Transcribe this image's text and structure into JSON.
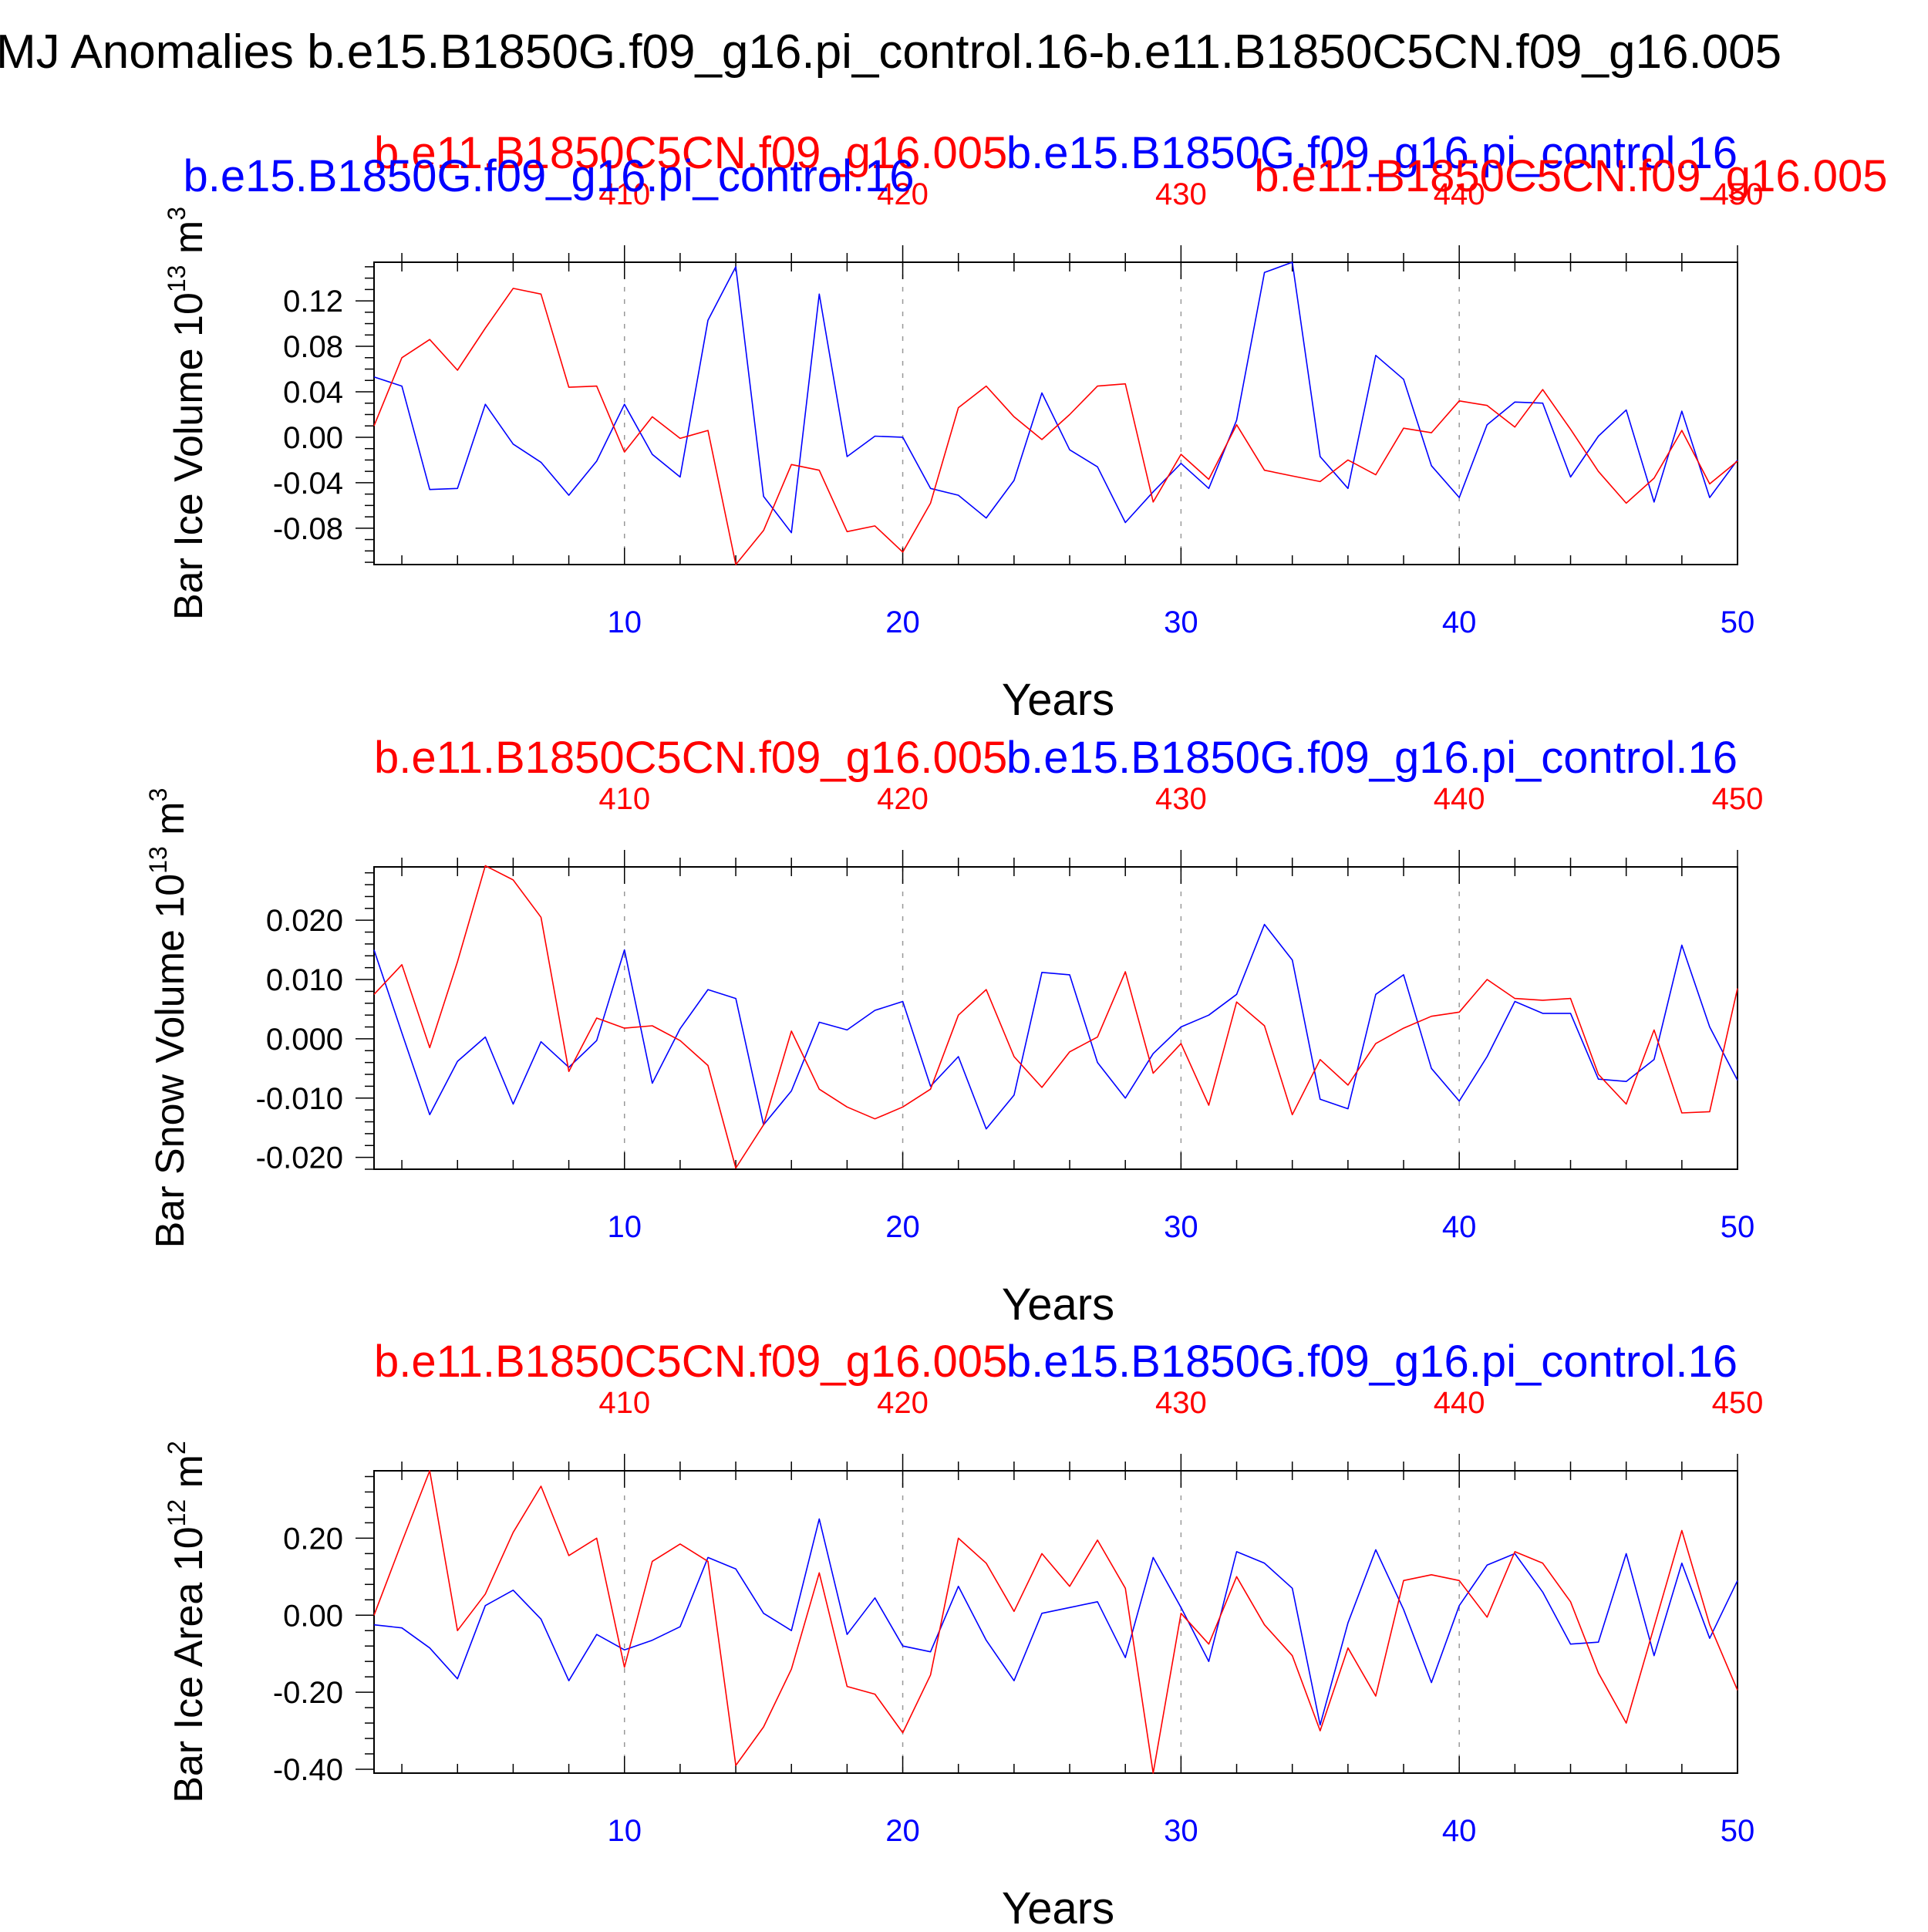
{
  "title": "MJ Anomalies b.e15.B1850G.f09_g16.pi_control.16-b.e11.B1850C5CN.f09_g16.005",
  "colors": {
    "case": "#0000ff",
    "control": "#ff0000",
    "axis": "#000000",
    "grid": "#999999"
  },
  "chart_data": [
    {
      "type": "line",
      "ylabel_main": "Bar Ice Volume 10",
      "ylabel_exp": "13",
      "ylabel_unit": " m",
      "ylabel_unit_exp": "3",
      "xlabel": "Years",
      "ylim": [
        -0.112,
        0.154
      ],
      "yticks": [
        -0.08,
        -0.04,
        0.0,
        0.04,
        0.08,
        0.12
      ],
      "ytick_labels": [
        "-0.08",
        "-0.04",
        "0.00",
        "0.04",
        "0.08",
        "0.12"
      ],
      "yminor_step": 0.01,
      "xlim": [
        1,
        50
      ],
      "xticks": [
        10,
        20,
        30,
        40,
        50
      ],
      "xtick_labels": [
        "10",
        "20",
        "30",
        "40",
        "50"
      ],
      "top_xtick_labels": [
        "410",
        "420",
        "430",
        "440",
        "450"
      ],
      "series_labels": [
        {
          "name": "b.e11.B1850C5CN.f09_g16.005",
          "color": "control",
          "anchor": "start",
          "xfrac": 0.0,
          "dy": -150
        },
        {
          "name": "b.e15.B1850G.f09_g16.pi_control.16",
          "color": "case",
          "anchor": "end",
          "xfrac": 1.0,
          "dy": -150
        },
        {
          "name": "b.e15.B1850G.f09_g16.pi_control.16",
          "color": "case",
          "anchor": "start",
          "xfrac": -0.14,
          "dy": -120
        },
        {
          "name": "b.e11.B1850C5CN.f09_g16.005",
          "color": "control",
          "anchor": "end",
          "xfrac": 1.11,
          "dy": -120
        }
      ],
      "x": [
        1,
        2,
        3,
        4,
        5,
        6,
        7,
        8,
        9,
        10,
        11,
        12,
        13,
        14,
        15,
        16,
        17,
        18,
        19,
        20,
        21,
        22,
        23,
        24,
        25,
        26,
        27,
        28,
        29,
        30,
        31,
        32,
        33,
        34,
        35,
        36,
        37,
        38,
        39,
        40,
        41,
        42,
        43,
        44,
        45,
        46,
        47,
        48,
        49,
        50
      ],
      "series": [
        {
          "color": "case",
          "values": [
            0.053,
            0.045,
            -0.046,
            -0.045,
            0.029,
            -0.006,
            -0.022,
            -0.051,
            -0.021,
            0.029,
            -0.015,
            -0.035,
            0.103,
            0.15,
            -0.052,
            -0.084,
            0.126,
            -0.017,
            0.001,
            0.0,
            -0.045,
            -0.051,
            -0.071,
            -0.038,
            0.039,
            -0.011,
            -0.026,
            -0.075,
            -0.048,
            -0.023,
            -0.045,
            0.015,
            0.145,
            0.154,
            -0.017,
            -0.045,
            0.072,
            0.051,
            -0.025,
            -0.053,
            0.011,
            0.031,
            0.03,
            -0.035,
            0.001,
            0.024,
            -0.057,
            0.023,
            -0.053,
            -0.02
          ]
        },
        {
          "color": "control",
          "values": [
            0.01,
            0.07,
            0.086,
            0.059,
            0.096,
            0.131,
            0.126,
            0.044,
            0.045,
            -0.013,
            0.018,
            -0.001,
            0.006,
            -0.112,
            -0.082,
            -0.024,
            -0.029,
            -0.083,
            -0.078,
            -0.101,
            -0.058,
            0.026,
            0.045,
            0.018,
            -0.002,
            0.02,
            0.045,
            0.047,
            -0.057,
            -0.015,
            -0.037,
            0.011,
            -0.029,
            -0.034,
            -0.039,
            -0.02,
            -0.033,
            0.008,
            0.004,
            0.032,
            0.028,
            0.009,
            0.042,
            0.007,
            -0.03,
            -0.058,
            -0.036,
            0.006,
            -0.041,
            -0.021
          ]
        }
      ]
    },
    {
      "type": "line",
      "ylabel_main": "Bar Snow Volume 10",
      "ylabel_exp": "13",
      "ylabel_unit": " m",
      "ylabel_unit_exp": "3",
      "xlabel": "Years",
      "ylim": [
        -0.022,
        0.029
      ],
      "yticks": [
        -0.02,
        -0.01,
        0.0,
        0.01,
        0.02
      ],
      "ytick_labels": [
        "-0.020",
        "-0.010",
        "0.000",
        "0.010",
        "0.020"
      ],
      "yminor_step": 0.002,
      "xlim": [
        1,
        50
      ],
      "xticks": [
        10,
        20,
        30,
        40,
        50
      ],
      "xtick_labels": [
        "10",
        "20",
        "30",
        "40",
        "50"
      ],
      "top_xtick_labels": [
        "410",
        "420",
        "430",
        "440",
        "450"
      ],
      "series_labels": [
        {
          "name": "b.e11.B1850C5CN.f09_g16.005",
          "color": "control",
          "anchor": "start",
          "xfrac": 0.0,
          "dy": -150
        },
        {
          "name": "b.e15.B1850G.f09_g16.pi_control.16",
          "color": "case",
          "anchor": "end",
          "xfrac": 1.0,
          "dy": -150
        }
      ],
      "x": [
        1,
        2,
        3,
        4,
        5,
        6,
        7,
        8,
        9,
        10,
        11,
        12,
        13,
        14,
        15,
        16,
        17,
        18,
        19,
        20,
        21,
        22,
        23,
        24,
        25,
        26,
        27,
        28,
        29,
        30,
        31,
        32,
        33,
        34,
        35,
        36,
        37,
        38,
        39,
        40,
        41,
        42,
        43,
        44,
        45,
        46,
        47,
        48,
        49,
        50
      ],
      "series": [
        {
          "color": "case",
          "values": [
            0.015,
            0.001,
            -0.0128,
            -0.0038,
            0.0003,
            -0.011,
            -0.0005,
            -0.0048,
            -0.0003,
            0.015,
            -0.0075,
            0.0017,
            0.0083,
            0.0068,
            -0.0145,
            -0.0088,
            0.0028,
            0.0015,
            0.0048,
            0.0063,
            -0.008,
            -0.003,
            -0.0152,
            -0.0095,
            0.0112,
            0.0108,
            -0.004,
            -0.01,
            -0.0025,
            0.002,
            0.004,
            0.0075,
            0.0193,
            0.0133,
            -0.0102,
            -0.0118,
            0.0075,
            0.0108,
            -0.005,
            -0.0105,
            -0.003,
            0.0063,
            0.0043,
            0.0043,
            -0.0068,
            -0.0072,
            -0.0035,
            0.0158,
            0.002,
            -0.007
          ]
        },
        {
          "color": "control",
          "values": [
            0.0075,
            0.0125,
            -0.0015,
            0.013,
            0.0292,
            0.0268,
            0.0205,
            -0.0055,
            0.0035,
            0.0018,
            0.0022,
            -0.0003,
            -0.0045,
            -0.0218,
            -0.0145,
            0.0013,
            -0.0085,
            -0.0115,
            -0.0135,
            -0.0115,
            -0.0085,
            0.004,
            0.0083,
            -0.003,
            -0.0082,
            -0.0022,
            0.0003,
            0.0113,
            -0.0058,
            -0.0008,
            -0.0112,
            0.0062,
            0.0022,
            -0.0128,
            -0.0035,
            -0.0078,
            -0.0008,
            0.0018,
            0.0038,
            0.0045,
            0.01,
            0.0068,
            0.0065,
            0.0068,
            -0.006,
            -0.011,
            0.0015,
            -0.0125,
            -0.0123,
            0.0085
          ]
        }
      ]
    },
    {
      "type": "line",
      "ylabel_main": "Bar Ice Area 10",
      "ylabel_exp": "12",
      "ylabel_unit": " m",
      "ylabel_unit_exp": "2",
      "xlabel": "Years",
      "ylim": [
        -0.41,
        0.375
      ],
      "yticks": [
        -0.4,
        -0.2,
        0.0,
        0.2
      ],
      "ytick_labels": [
        "-0.40",
        "-0.20",
        "0.00",
        "0.20"
      ],
      "yminor_step": 0.04,
      "xlim": [
        1,
        50
      ],
      "xticks": [
        10,
        20,
        30,
        40,
        50
      ],
      "xtick_labels": [
        "10",
        "20",
        "30",
        "40",
        "50"
      ],
      "top_xtick_labels": [
        "410",
        "420",
        "430",
        "440",
        "450"
      ],
      "series_labels": [
        {
          "name": "b.e11.B1850C5CN.f09_g16.005",
          "color": "control",
          "anchor": "start",
          "xfrac": 0.0,
          "dy": -150
        },
        {
          "name": "b.e15.B1850G.f09_g16.pi_control.16",
          "color": "case",
          "anchor": "end",
          "xfrac": 1.0,
          "dy": -150
        }
      ],
      "x": [
        1,
        2,
        3,
        4,
        5,
        6,
        7,
        8,
        9,
        10,
        11,
        12,
        13,
        14,
        15,
        16,
        17,
        18,
        19,
        20,
        21,
        22,
        23,
        24,
        25,
        26,
        27,
        28,
        29,
        30,
        31,
        32,
        33,
        34,
        35,
        36,
        37,
        38,
        39,
        40,
        41,
        42,
        43,
        44,
        45,
        46,
        47,
        48,
        49,
        50
      ],
      "series": [
        {
          "color": "case",
          "values": [
            -0.025,
            -0.033,
            -0.085,
            -0.165,
            0.025,
            0.065,
            -0.01,
            -0.17,
            -0.05,
            -0.09,
            -0.065,
            -0.03,
            0.15,
            0.12,
            0.005,
            -0.04,
            0.25,
            -0.05,
            0.045,
            -0.08,
            -0.095,
            0.075,
            -0.065,
            -0.17,
            0.005,
            0.02,
            0.035,
            -0.11,
            0.15,
            0.02,
            -0.12,
            0.165,
            0.135,
            0.07,
            -0.285,
            -0.02,
            0.17,
            0.015,
            -0.175,
            0.025,
            0.13,
            0.16,
            0.06,
            -0.075,
            -0.07,
            0.16,
            -0.105,
            0.135,
            -0.06,
            0.09
          ]
        },
        {
          "color": "control",
          "values": [
            0.0,
            0.19,
            0.375,
            -0.04,
            0.055,
            0.215,
            0.335,
            0.155,
            0.2,
            -0.135,
            0.14,
            0.185,
            0.14,
            -0.39,
            -0.29,
            -0.14,
            0.11,
            -0.185,
            -0.205,
            -0.305,
            -0.155,
            0.2,
            0.135,
            0.01,
            0.16,
            0.075,
            0.195,
            0.07,
            -0.41,
            0.005,
            -0.075,
            0.1,
            -0.025,
            -0.105,
            -0.3,
            -0.085,
            -0.21,
            0.09,
            0.105,
            0.09,
            -0.005,
            0.165,
            0.135,
            0.035,
            -0.15,
            -0.28,
            -0.03,
            0.22,
            -0.025,
            -0.195
          ]
        }
      ]
    }
  ]
}
